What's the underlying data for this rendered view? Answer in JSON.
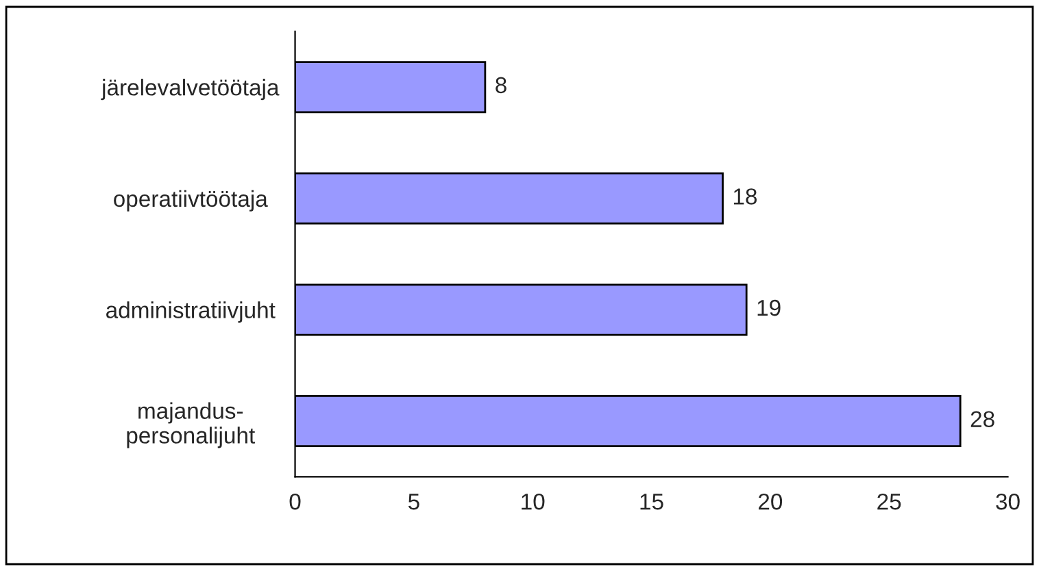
{
  "chart_data": {
    "type": "bar",
    "orientation": "horizontal",
    "categories": [
      "järelevalvetöötaja",
      "operatiivtöötaja",
      "administratiivjuht",
      "majandus-\npersonalijuht"
    ],
    "values": [
      8,
      18,
      19,
      28
    ],
    "color": "#9999ff",
    "xlim": [
      0,
      30
    ],
    "xticks": [
      0,
      5,
      10,
      15,
      20,
      25,
      30
    ],
    "grid": false,
    "data_labels": true
  }
}
